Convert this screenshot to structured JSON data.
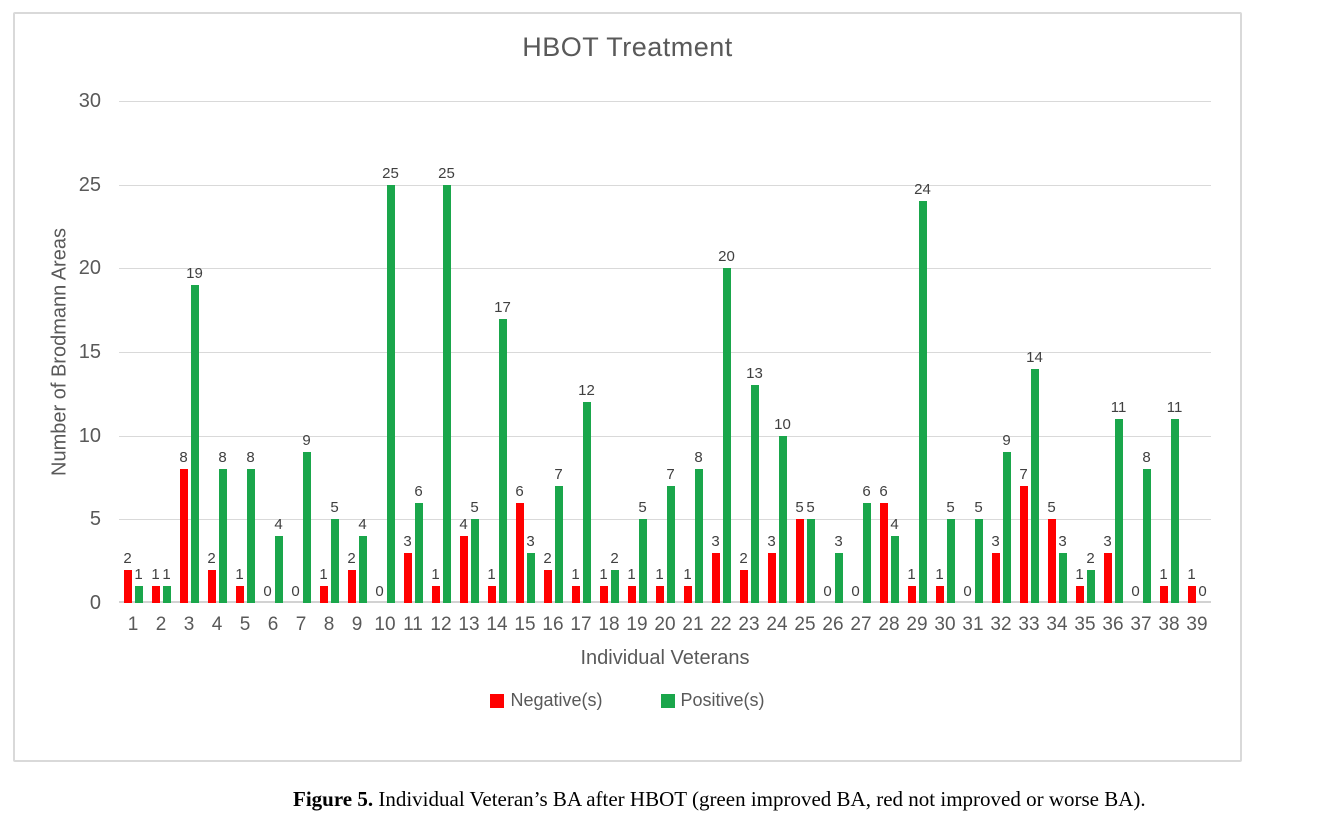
{
  "figure": {
    "caption_label": "Figure 5.",
    "caption_body": " Individual Veteran’s BA after HBOT (green improved BA, red not improved or worse BA)."
  },
  "colors": {
    "negative": "#FF0000",
    "positive": "#1AA64B",
    "gridline": "#D9D9D9",
    "axis_text": "#595959",
    "data_label_text": "#404040"
  },
  "chart_data": {
    "type": "bar",
    "title": "HBOT Treatment",
    "xlabel": "Individual Veterans",
    "ylabel": "Number of Brodmann Areas",
    "ylim": [
      0,
      30
    ],
    "yticks": [
      0,
      5,
      10,
      15,
      20,
      25,
      30
    ],
    "grid": true,
    "data_labels": true,
    "legend_position": "bottom",
    "categories": [
      "1",
      "2",
      "3",
      "4",
      "5",
      "6",
      "7",
      "8",
      "9",
      "10",
      "11",
      "12",
      "13",
      "14",
      "15",
      "16",
      "17",
      "18",
      "19",
      "20",
      "21",
      "22",
      "23",
      "24",
      "25",
      "26",
      "27",
      "28",
      "29",
      "30",
      "31",
      "32",
      "33",
      "34",
      "35",
      "36",
      "37",
      "38",
      "39"
    ],
    "series": [
      {
        "name": "Negative(s)",
        "color": "#FF0000",
        "values": [
          2,
          1,
          8,
          2,
          1,
          0,
          0,
          1,
          2,
          0,
          3,
          1,
          4,
          1,
          6,
          2,
          1,
          1,
          1,
          1,
          1,
          3,
          2,
          3,
          5,
          0,
          0,
          6,
          1,
          1,
          0,
          3,
          7,
          5,
          1,
          3,
          0,
          1,
          1
        ]
      },
      {
        "name": "Positive(s)",
        "color": "#1AA64B",
        "values": [
          1,
          1,
          19,
          8,
          8,
          4,
          9,
          5,
          4,
          25,
          6,
          25,
          5,
          17,
          3,
          7,
          12,
          2,
          5,
          7,
          8,
          20,
          13,
          10,
          5,
          3,
          6,
          4,
          24,
          5,
          5,
          9,
          14,
          3,
          2,
          11,
          8,
          11,
          0
        ]
      }
    ]
  }
}
